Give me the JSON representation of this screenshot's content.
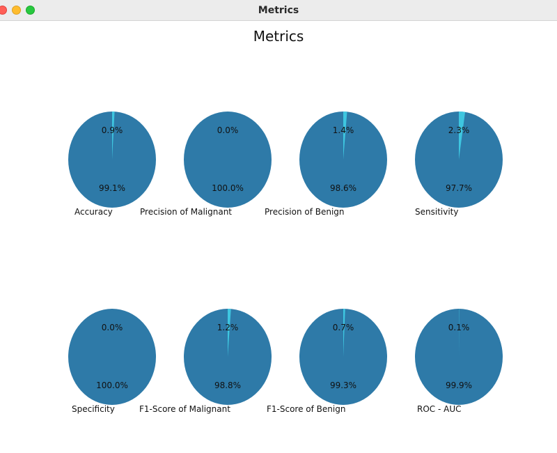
{
  "window": {
    "title": "Metrics"
  },
  "colors": {
    "major": "#2e7aa8",
    "minor": "#3ec6e0",
    "text": "#111111"
  },
  "chart_data": {
    "type": "pie",
    "title": "Metrics",
    "charts": [
      {
        "label": "Accuracy",
        "values": [
          0.9,
          99.1
        ],
        "labels": [
          "0.9%",
          "99.1%"
        ]
      },
      {
        "label": "Precision of Malignant",
        "values": [
          0.0,
          100.0
        ],
        "labels": [
          "0.0%",
          "100.0%"
        ]
      },
      {
        "label": "Precision of Benign",
        "values": [
          1.4,
          98.6
        ],
        "labels": [
          "1.4%",
          "98.6%"
        ]
      },
      {
        "label": "Sensitivity",
        "values": [
          2.3,
          97.7
        ],
        "labels": [
          "2.3%",
          "97.7%"
        ]
      },
      {
        "label": "Specificity",
        "values": [
          0.0,
          100.0
        ],
        "labels": [
          "0.0%",
          "100.0%"
        ]
      },
      {
        "label": "F1-Score of Malignant",
        "values": [
          1.2,
          98.8
        ],
        "labels": [
          "1.2%",
          "98.8%"
        ]
      },
      {
        "label": "F1-Score of Benign",
        "values": [
          0.7,
          99.3
        ],
        "labels": [
          "0.7%",
          "99.3%"
        ]
      },
      {
        "label": "ROC - AUC",
        "values": [
          0.1,
          99.9
        ],
        "labels": [
          "0.1%",
          "99.9%"
        ]
      }
    ]
  }
}
